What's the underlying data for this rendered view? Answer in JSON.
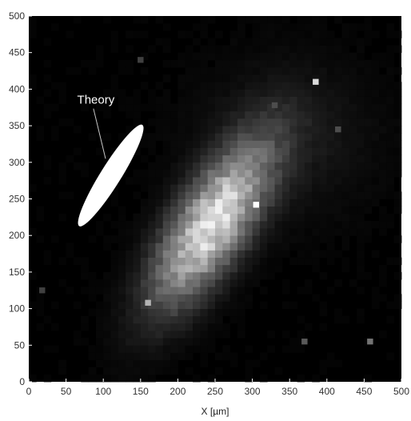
{
  "chart_data": {
    "type": "heatmap",
    "title": "",
    "xlabel": "X [µm]",
    "ylabel": "",
    "xlim": [
      0,
      500
    ],
    "ylim": [
      0,
      500
    ],
    "x_ticks": [
      0,
      50,
      100,
      150,
      200,
      250,
      300,
      350,
      400,
      450,
      500
    ],
    "y_ticks": [
      0,
      50,
      100,
      150,
      200,
      250,
      300,
      350,
      400,
      450,
      500
    ],
    "grid": false,
    "colormap": "grayscale",
    "background_color": "#000000",
    "blob": {
      "center": [
        245,
        215
      ],
      "major_axis_angle_deg": 58,
      "sigma_major": 85,
      "sigma_minor": 32
    },
    "hot_pixels": [
      {
        "x": 305,
        "y": 242,
        "intensity": 1.0
      },
      {
        "x": 385,
        "y": 410,
        "intensity": 0.85
      },
      {
        "x": 160,
        "y": 108,
        "intensity": 0.7
      },
      {
        "x": 458,
        "y": 55,
        "intensity": 0.45
      },
      {
        "x": 370,
        "y": 55,
        "intensity": 0.35
      },
      {
        "x": 415,
        "y": 345,
        "intensity": 0.3
      },
      {
        "x": 18,
        "y": 125,
        "intensity": 0.25
      },
      {
        "x": 330,
        "y": 378,
        "intensity": 0.3
      },
      {
        "x": 150,
        "y": 440,
        "intensity": 0.25
      }
    ],
    "theory_ellipse": {
      "center": [
        110,
        282
      ],
      "semi_major": 80,
      "semi_minor": 14,
      "angle_deg": 58,
      "fill": "#ffffff"
    },
    "annotations": [
      {
        "text": "Theory",
        "x": 90,
        "y": 380,
        "pointer_to": [
          103,
          305
        ]
      }
    ]
  }
}
